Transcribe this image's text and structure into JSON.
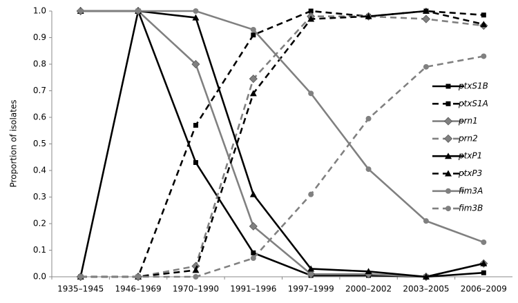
{
  "chart_data": {
    "type": "line",
    "ylabel": "Proportion of isolates",
    "categories": [
      "1935–1945",
      "1946–1969",
      "1970–1990",
      "1991–1996",
      "1997–1999",
      "2000–2002",
      "2003–2005",
      "2006–2009"
    ],
    "ylim": [
      0,
      1
    ],
    "yticks": [
      {
        "value": 0,
        "label": "0.0"
      },
      0.1,
      0.2,
      0.3,
      0.4,
      0.5,
      0.6,
      0.7,
      0.8,
      0.9,
      {
        "value": 1,
        "label": "1.0"
      }
    ],
    "series": [
      {
        "name": "ptxS1B",
        "color": "#000000",
        "dash": false,
        "marker": "square",
        "values": [
          0,
          1,
          0.43,
          0.09,
          0.005,
          0.005,
          0,
          0.015
        ]
      },
      {
        "name": "ptxS1A",
        "color": "#000000",
        "dash": true,
        "marker": "square",
        "values": [
          0,
          0,
          0.57,
          0.91,
          1.0,
          0.98,
          1.0,
          0.985
        ]
      },
      {
        "name": "prn1",
        "color": "#808080",
        "dash": false,
        "marker": "diamond",
        "values": [
          1,
          1,
          0.8,
          0.19,
          0.01,
          0.01,
          0,
          0.05
        ]
      },
      {
        "name": "prn2",
        "color": "#808080",
        "dash": true,
        "marker": "diamond",
        "values": [
          0,
          0,
          0.04,
          0.745,
          0.98,
          0.98,
          0.97,
          0.945
        ]
      },
      {
        "name": "ptxP1",
        "color": "#000000",
        "dash": false,
        "marker": "triangle",
        "values": [
          1,
          1,
          0.975,
          0.31,
          0.03,
          0.02,
          0,
          0.05
        ]
      },
      {
        "name": "ptxP3",
        "color": "#000000",
        "dash": true,
        "marker": "triangle",
        "values": [
          0,
          0,
          0.025,
          0.69,
          0.97,
          0.98,
          1.0,
          0.95
        ]
      },
      {
        "name": "fim3A",
        "color": "#808080",
        "dash": false,
        "marker": "circle",
        "values": [
          1,
          1,
          1,
          0.93,
          0.69,
          0.405,
          0.21,
          0.13
        ]
      },
      {
        "name": "fim3B",
        "color": "#808080",
        "dash": true,
        "marker": "circle",
        "values": [
          0,
          0,
          0,
          0.07,
          0.31,
          0.595,
          0.79,
          0.83
        ]
      }
    ]
  }
}
